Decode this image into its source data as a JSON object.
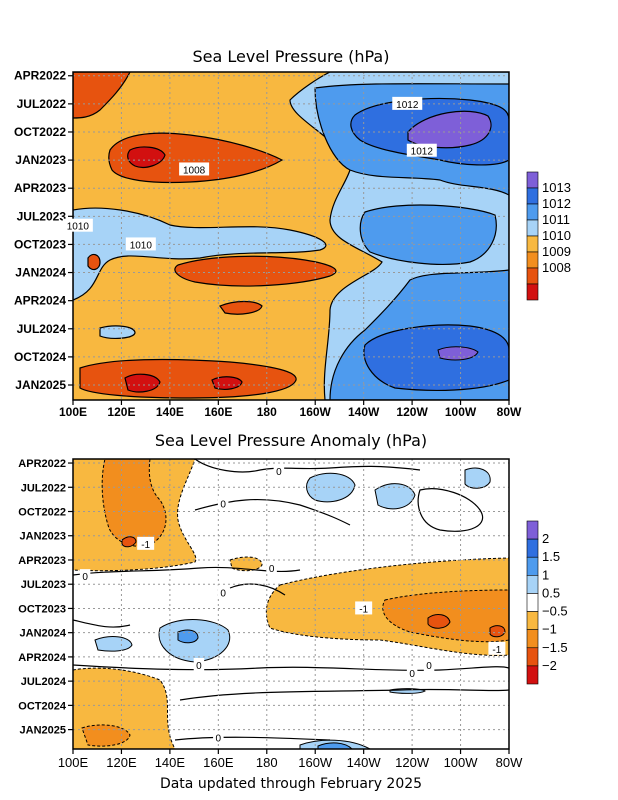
{
  "footer": "Data updated through February 2025",
  "chart_data": [
    {
      "type": "heatmap",
      "title": "Sea Level Pressure (hPa)",
      "x_ticks": [
        "100E",
        "120E",
        "140E",
        "160E",
        "180",
        "160W",
        "140W",
        "120W",
        "100W",
        "80W"
      ],
      "y_ticks": [
        "APR2022",
        "JUL2022",
        "OCT2022",
        "JAN2023",
        "APR2023",
        "JUL2023",
        "OCT2023",
        "JAN2024",
        "APR2024",
        "JUL2024",
        "OCT2024",
        "JAN2025"
      ],
      "colorbar": {
        "labels": [
          "1013",
          "1012",
          "1011",
          "1010",
          "1009",
          "1008"
        ],
        "colors": [
          "#7E5FD8",
          "#2F6FE0",
          "#4E9BEE",
          "#A7D3F7",
          "#F8B840",
          "#F28E1E",
          "#E7530F",
          "#D21010"
        ]
      },
      "contour_labels": [
        {
          "text": "1012",
          "lon": -122,
          "date": "JUL2022"
        },
        {
          "text": "1012",
          "lon": -116,
          "date": "DEC2022"
        },
        {
          "text": "1008",
          "lon": 150,
          "date": "FEB2023"
        },
        {
          "text": "1010",
          "lon": 102,
          "date": "AUG2023"
        },
        {
          "text": "1010",
          "lon": 128,
          "date": "OCT2023"
        }
      ]
    },
    {
      "type": "heatmap",
      "title": "Sea Level Pressure Anomaly (hPa)",
      "x_ticks": [
        "100E",
        "120E",
        "140E",
        "160E",
        "180",
        "160W",
        "140W",
        "120W",
        "100W",
        "80W"
      ],
      "y_ticks": [
        "APR2022",
        "JUL2022",
        "OCT2022",
        "JAN2023",
        "APR2023",
        "JUL2023",
        "OCT2023",
        "JAN2024",
        "APR2024",
        "JUL2024",
        "OCT2024",
        "JAN2025"
      ],
      "colorbar": {
        "labels": [
          "2",
          "1.5",
          "1",
          "0.5",
          "−0.5",
          "−1",
          "−1.5",
          "−2"
        ],
        "colors": [
          "#7E5FD8",
          "#2F6FE0",
          "#4E9BEE",
          "#A7D3F7",
          "#FFFFFF",
          "#F8B840",
          "#F28E1E",
          "#E7530F",
          "#D21010"
        ]
      },
      "contour_labels": [
        {
          "text": "0",
          "lon": -175,
          "date": "MAY2022"
        },
        {
          "text": "0",
          "lon": 162,
          "date": "SEP2022"
        },
        {
          "text": "-1",
          "lon": 130,
          "date": "FEB2023"
        },
        {
          "text": "0",
          "lon": 105,
          "date": "JUN2023"
        },
        {
          "text": "0",
          "lon": -178,
          "date": "MAY2023"
        },
        {
          "text": "0",
          "lon": 162,
          "date": "AUG2023"
        },
        {
          "text": "-1",
          "lon": -140,
          "date": "OCT2023"
        },
        {
          "text": "0",
          "lon": -120,
          "date": "JUN2024"
        },
        {
          "text": "0",
          "lon": -113,
          "date": "MAY2024"
        },
        {
          "text": "-1",
          "lon": -85,
          "date": "MAR2024"
        },
        {
          "text": "0",
          "lon": 152,
          "date": "MAY2024"
        },
        {
          "text": "0",
          "lon": 160,
          "date": "FEB2025"
        }
      ]
    }
  ]
}
